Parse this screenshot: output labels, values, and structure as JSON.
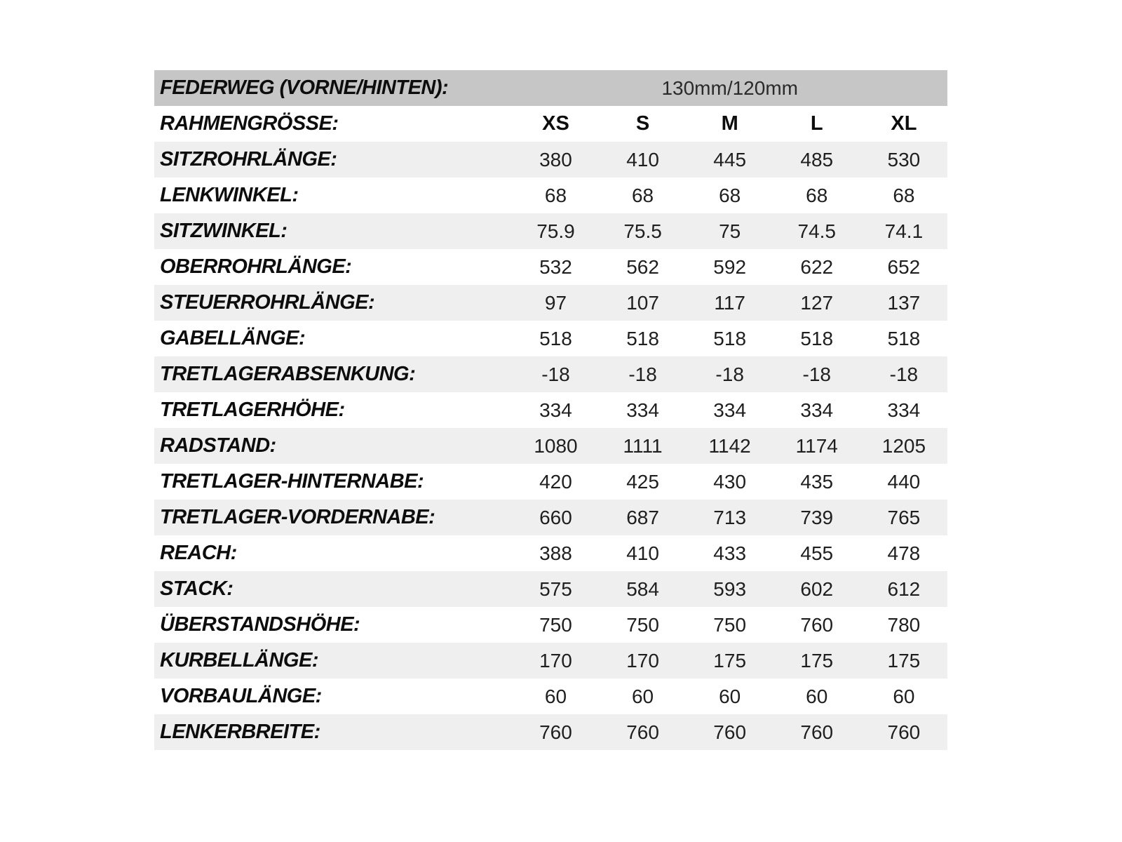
{
  "table": {
    "header": {
      "label": "FEDERWEG (VORNE/HINTEN):",
      "value": "130mm/120mm"
    },
    "size_row": {
      "label": "RAHMENGRÖSSE:",
      "sizes": [
        "XS",
        "S",
        "M",
        "L",
        "XL"
      ]
    },
    "rows": [
      {
        "label": "SITZROHRLÄNGE:",
        "values": [
          "380",
          "410",
          "445",
          "485",
          "530"
        ]
      },
      {
        "label": "LENKWINKEL:",
        "values": [
          "68",
          "68",
          "68",
          "68",
          "68"
        ]
      },
      {
        "label": "SITZWINKEL:",
        "values": [
          "75.9",
          "75.5",
          "75",
          "74.5",
          "74.1"
        ]
      },
      {
        "label": "OBERROHRLÄNGE:",
        "values": [
          "532",
          "562",
          "592",
          "622",
          "652"
        ]
      },
      {
        "label": "STEUERROHRLÄNGE:",
        "values": [
          "97",
          "107",
          "117",
          "127",
          "137"
        ]
      },
      {
        "label": "GABELLÄNGE:",
        "values": [
          "518",
          "518",
          "518",
          "518",
          "518"
        ]
      },
      {
        "label": "TRETLAGERABSENKUNG:",
        "values": [
          "-18",
          "-18",
          "-18",
          "-18",
          "-18"
        ]
      },
      {
        "label": "TRETLAGERHÖHE:",
        "values": [
          "334",
          "334",
          "334",
          "334",
          "334"
        ]
      },
      {
        "label": "RADSTAND:",
        "values": [
          "1080",
          "1111",
          "1142",
          "1174",
          "1205"
        ]
      },
      {
        "label": "TRETLAGER-HINTERNABE:",
        "values": [
          "420",
          "425",
          "430",
          "435",
          "440"
        ]
      },
      {
        "label": "TRETLAGER-VORDERNABE:",
        "values": [
          "660",
          "687",
          "713",
          "739",
          "765"
        ]
      },
      {
        "label": "REACH:",
        "values": [
          "388",
          "410",
          "433",
          "455",
          "478"
        ]
      },
      {
        "label": "STACK:",
        "values": [
          "575",
          "584",
          "593",
          "602",
          "612"
        ]
      },
      {
        "label": "ÜBERSTANDSHÖHE:",
        "values": [
          "750",
          "750",
          "750",
          "760",
          "780"
        ]
      },
      {
        "label": "KURBELLÄNGE:",
        "values": [
          "170",
          "170",
          "175",
          "175",
          "175"
        ]
      },
      {
        "label": "VORBAULÄNGE:",
        "values": [
          "60",
          "60",
          "60",
          "60",
          "60"
        ]
      },
      {
        "label": "LENKERBREITE:",
        "values": [
          "760",
          "760",
          "760",
          "760",
          "760"
        ]
      }
    ]
  }
}
